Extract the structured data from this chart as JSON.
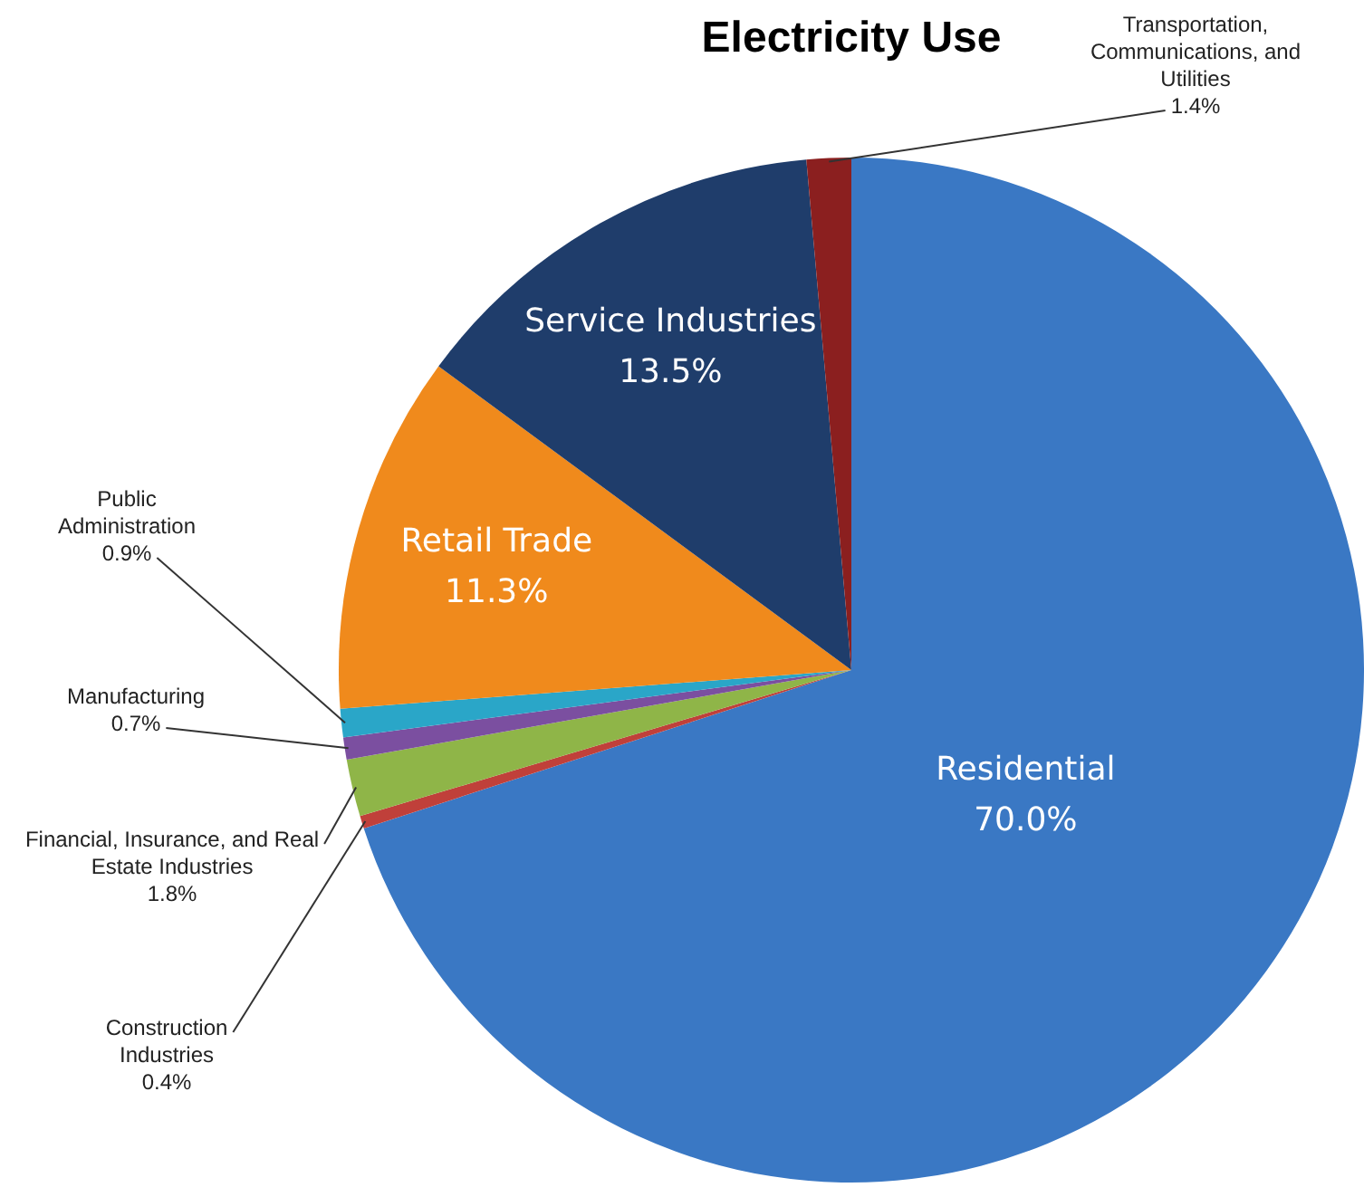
{
  "chart_data": {
    "type": "pie",
    "title": "Electricity Use",
    "categories": [
      "Residential",
      "Construction Industries",
      "Financial, Insurance, and Real Estate Industries",
      "Manufacturing",
      "Public Administration",
      "Retail Trade",
      "Service Industries",
      "Transportation, Communications, and Utilities"
    ],
    "values": [
      70.0,
      0.4,
      1.8,
      0.7,
      0.9,
      11.3,
      13.5,
      1.4
    ],
    "colors": [
      "#3a78c4",
      "#c0403a",
      "#8fb548",
      "#7b4fa0",
      "#2aa6c8",
      "#f08a1c",
      "#1f3d6b",
      "#8b1f1f"
    ],
    "value_labels": [
      "70.0%",
      "0.4%",
      "1.8%",
      "0.7%",
      "0.9%",
      "11.3%",
      "13.5%",
      "1.4%"
    ],
    "legend": false
  }
}
